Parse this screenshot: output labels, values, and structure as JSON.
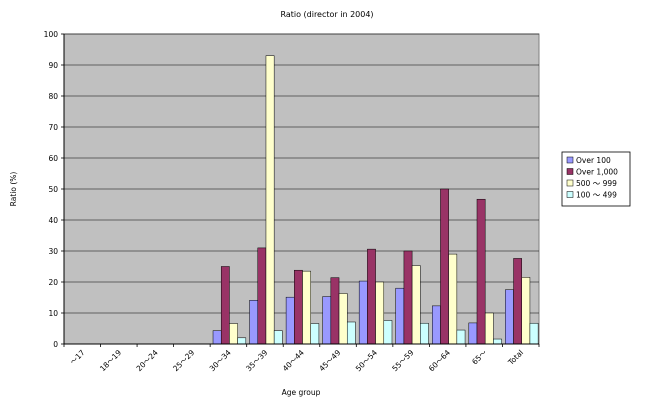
{
  "chart_data": {
    "type": "bar",
    "title": "Ratio (director in 2004)",
    "xlabel": "Age group",
    "ylabel": "Ratio (%)",
    "ylim": [
      0,
      100
    ],
    "yticks": [
      0,
      10,
      20,
      30,
      40,
      50,
      60,
      70,
      80,
      90,
      100
    ],
    "categories": [
      "～17",
      "18～19",
      "20～24",
      "25～29",
      "30～34",
      "35～39",
      "40～44",
      "45～49",
      "50～54",
      "55～59",
      "60～64",
      "65～",
      "Total"
    ],
    "legend_position": "right",
    "grid": true,
    "plot_background": "#c0c0c0",
    "series": [
      {
        "name": "Over 100",
        "color": "#9999ff",
        "values": [
          0,
          0,
          0,
          0,
          4.3,
          14.1,
          15.1,
          15.3,
          20.3,
          18.0,
          12.3,
          6.8,
          17.5
        ]
      },
      {
        "name": "Over 1,000",
        "color": "#993366",
        "values": [
          0,
          0,
          0,
          0,
          25.0,
          31.0,
          23.8,
          21.4,
          30.6,
          30.0,
          50.0,
          46.7,
          27.6
        ]
      },
      {
        "name": "500 ～ 999",
        "color": "#ffffcc",
        "values": [
          0,
          0,
          0,
          0,
          6.6,
          93.0,
          23.5,
          16.3,
          20.0,
          25.3,
          29.0,
          10.0,
          21.5
        ]
      },
      {
        "name": "100 ～ 499",
        "color": "#ccffff",
        "values": [
          0,
          0,
          0,
          0,
          2.0,
          4.3,
          6.6,
          7.1,
          7.6,
          6.7,
          4.5,
          1.6,
          6.7
        ]
      }
    ]
  }
}
